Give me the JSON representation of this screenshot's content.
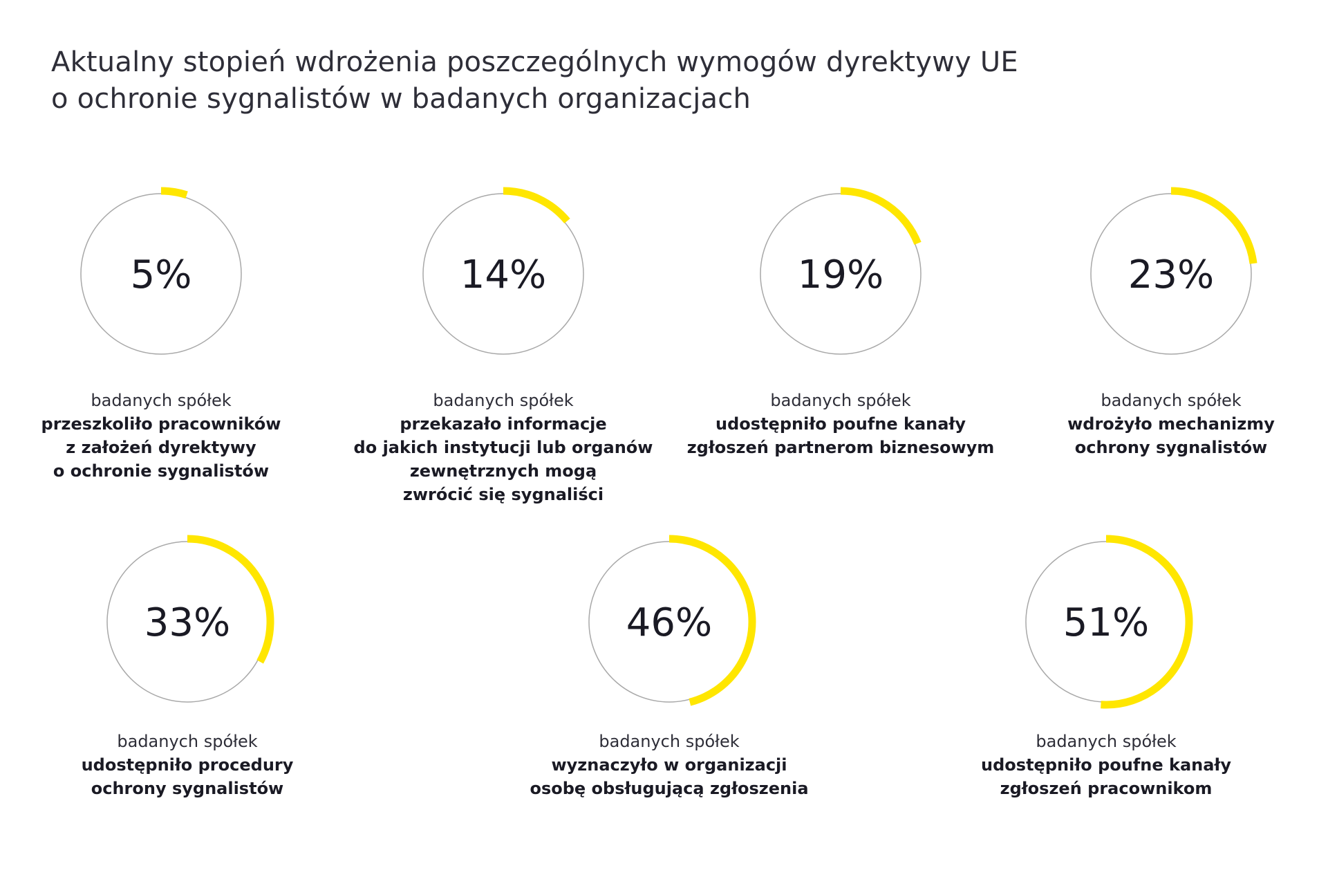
{
  "title_lines": [
    "Aktualny stopień wdrożenia poszczególnych wymogów dyrektywy UE",
    "o ochronie sygnalistów w badanych organizacjach"
  ],
  "colors": {
    "ring": "#a8a8a8",
    "accent": "#ffe600",
    "text": "#1a1a24"
  },
  "chart_data": {
    "type": "donut-progress",
    "items": [
      {
        "value": 5,
        "label": "5%",
        "lead": "badanych spółek",
        "desc": "przeszkoliło pracowników\nz założeń dyrektywy\no ochronie sygnalistów"
      },
      {
        "value": 14,
        "label": "14%",
        "lead": "badanych spółek",
        "desc": "przekazało informacje\ndo jakich instytucji lub organów\nzewnętrznych mogą\nzwrócić się sygnaliści"
      },
      {
        "value": 19,
        "label": "19%",
        "lead": "badanych spółek",
        "desc": "udostępniło poufne kanały\nzgłoszeń partnerom biznesowym"
      },
      {
        "value": 23,
        "label": "23%",
        "lead": "badanych spółek",
        "desc": "wdrożyło mechanizmy\nochrony sygnalistów"
      },
      {
        "value": 33,
        "label": "33%",
        "lead": "badanych spółek",
        "desc": "udostępniło procedury\nochrony sygnalistów"
      },
      {
        "value": 46,
        "label": "46%",
        "lead": "badanych spółek",
        "desc": "wyznaczyło w organizacji\nosobę obsługującą zgłoszenia"
      },
      {
        "value": 51,
        "label": "51%",
        "lead": "badanych spółek",
        "desc": "udostępniło poufne kanały\nzgłoszeń pracownikom"
      }
    ]
  }
}
